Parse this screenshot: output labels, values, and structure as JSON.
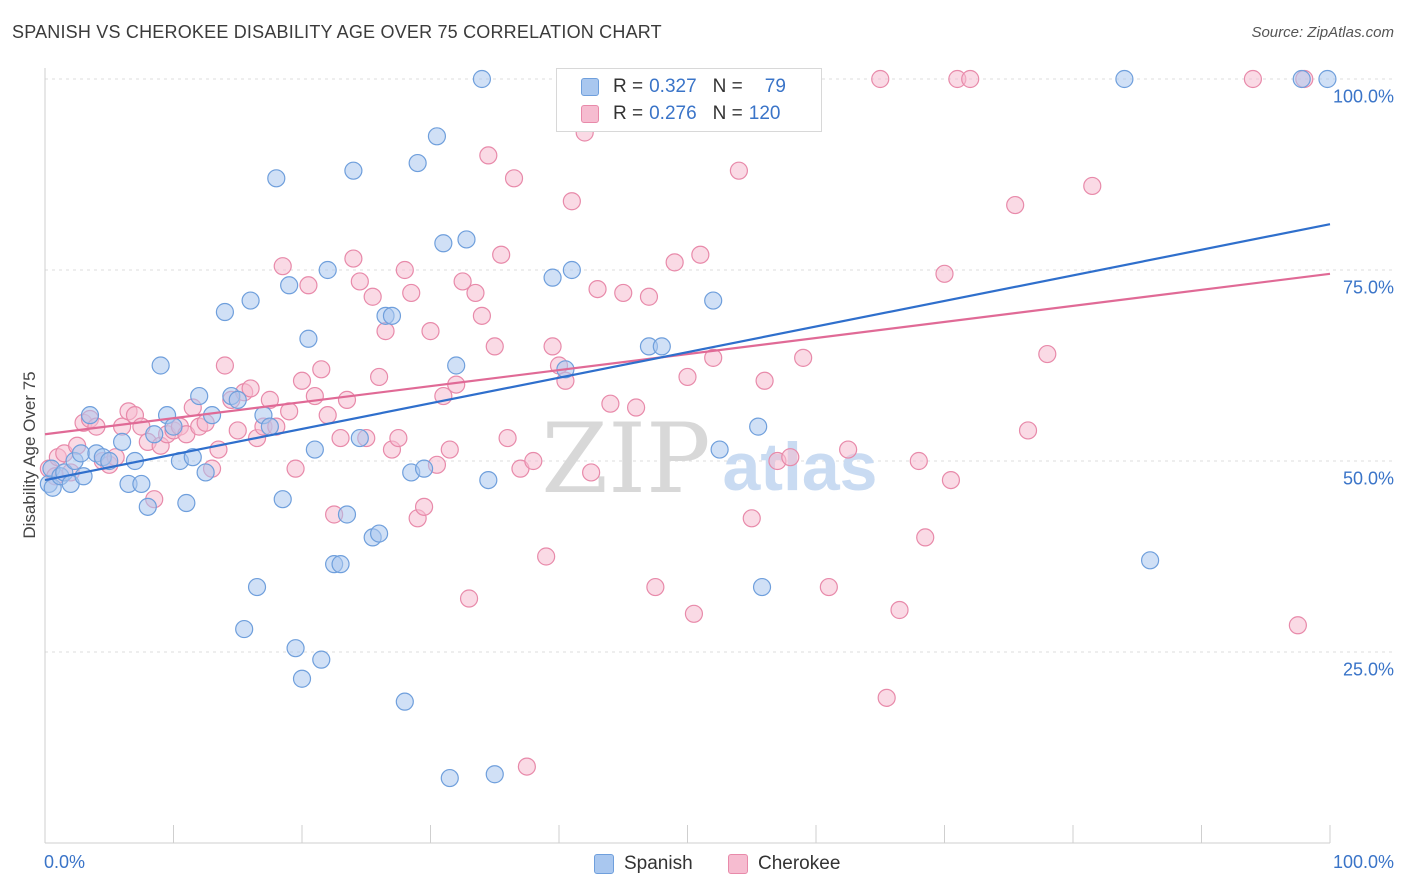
{
  "title": "SPANISH VS CHEROKEE DISABILITY AGE OVER 75 CORRELATION CHART",
  "source": "Source: ZipAtlas.com",
  "watermark": {
    "zip": "ZIP",
    "atlas": "atlas"
  },
  "colors": {
    "spanish_fill": "#a9c7ef",
    "spanish_stroke": "#6f9fdc",
    "spanish_line": "#2f6fcc",
    "cherokee_fill": "#f6bcd0",
    "cherokee_stroke": "#e88aaa",
    "cherokee_line": "#e06a96",
    "tick_text": "#3a74c8",
    "grid": "#dddddd"
  },
  "legend": {
    "rows": [
      {
        "r_label": "R =",
        "r_value": "0.327",
        "n_label": "N =",
        "n_value": "79"
      },
      {
        "r_label": "R =",
        "r_value": "0.276",
        "n_label": "N =",
        "n_value": "120"
      }
    ]
  },
  "bottom_legend": {
    "spanish": "Spanish",
    "cherokee": "Cherokee"
  },
  "chart_data": {
    "type": "scatter",
    "title": "SPANISH VS CHEROKEE DISABILITY AGE OVER 75 CORRELATION CHART",
    "xlabel": "",
    "ylabel": "Disability Age Over 75",
    "xlim": [
      0,
      100
    ],
    "ylim": [
      0,
      105
    ],
    "x_tick_labels": {
      "min": "0.0%",
      "max": "100.0%"
    },
    "y_ticks": [
      {
        "value": 25,
        "label": "25.0%"
      },
      {
        "value": 50,
        "label": "50.0%"
      },
      {
        "value": 75,
        "label": "75.0%"
      },
      {
        "value": 100,
        "label": "100.0%"
      }
    ],
    "grid": true,
    "legend_position": "top-center",
    "series": [
      {
        "name": "Spanish",
        "r": 0.327,
        "n": 79,
        "trend": {
          "x": [
            0,
            100
          ],
          "y": [
            47.5,
            81.0
          ]
        },
        "points": [
          [
            0.3,
            47.0
          ],
          [
            0.5,
            49.0
          ],
          [
            0.6,
            46.5
          ],
          [
            1.2,
            48.0
          ],
          [
            1.5,
            48.5
          ],
          [
            2.0,
            47.0
          ],
          [
            2.3,
            50.0
          ],
          [
            2.8,
            51.0
          ],
          [
            3.0,
            48.0
          ],
          [
            3.5,
            56.0
          ],
          [
            4.0,
            51.0
          ],
          [
            4.5,
            50.5
          ],
          [
            5.0,
            50.0
          ],
          [
            6.0,
            52.5
          ],
          [
            6.5,
            47.0
          ],
          [
            7.0,
            50.0
          ],
          [
            7.5,
            47.0
          ],
          [
            8.0,
            44.0
          ],
          [
            8.5,
            53.5
          ],
          [
            9.0,
            62.5
          ],
          [
            9.5,
            56.0
          ],
          [
            10.0,
            54.5
          ],
          [
            10.5,
            50.0
          ],
          [
            11.0,
            44.5
          ],
          [
            11.5,
            50.5
          ],
          [
            12.0,
            58.5
          ],
          [
            12.5,
            48.5
          ],
          [
            13.0,
            56.0
          ],
          [
            14.0,
            69.5
          ],
          [
            14.5,
            58.5
          ],
          [
            15.0,
            58.0
          ],
          [
            15.5,
            28.0
          ],
          [
            16.0,
            71.0
          ],
          [
            16.5,
            33.5
          ],
          [
            17.0,
            56.0
          ],
          [
            17.5,
            54.5
          ],
          [
            18.0,
            87.0
          ],
          [
            18.5,
            45.0
          ],
          [
            19.0,
            73.0
          ],
          [
            19.5,
            25.5
          ],
          [
            20.0,
            21.5
          ],
          [
            20.5,
            66.0
          ],
          [
            21.0,
            51.5
          ],
          [
            21.5,
            24.0
          ],
          [
            22.0,
            75.0
          ],
          [
            22.5,
            36.5
          ],
          [
            23.0,
            36.5
          ],
          [
            23.5,
            43.0
          ],
          [
            24.0,
            88.0
          ],
          [
            24.5,
            53.0
          ],
          [
            25.5,
            40.0
          ],
          [
            26.0,
            40.5
          ],
          [
            26.5,
            69.0
          ],
          [
            27.0,
            69.0
          ],
          [
            28.0,
            18.5
          ],
          [
            28.5,
            48.5
          ],
          [
            29.0,
            89.0
          ],
          [
            29.5,
            49.0
          ],
          [
            30.5,
            92.5
          ],
          [
            31.0,
            78.5
          ],
          [
            31.5,
            8.5
          ],
          [
            32.0,
            62.5
          ],
          [
            32.8,
            79.0
          ],
          [
            34.0,
            100.0
          ],
          [
            34.5,
            47.5
          ],
          [
            35.0,
            9.0
          ],
          [
            39.5,
            74.0
          ],
          [
            40.5,
            62.0
          ],
          [
            41.0,
            75.0
          ],
          [
            47.0,
            65.0
          ],
          [
            48.0,
            65.0
          ],
          [
            52.0,
            71.0
          ],
          [
            52.5,
            51.5
          ],
          [
            55.5,
            54.5
          ],
          [
            55.8,
            33.5
          ],
          [
            84.0,
            100.0
          ],
          [
            86.0,
            37.0
          ],
          [
            97.8,
            100.0
          ],
          [
            99.8,
            100.0
          ]
        ]
      },
      {
        "name": "Cherokee",
        "r": 0.276,
        "n": 120,
        "trend": {
          "x": [
            0,
            100
          ],
          "y": [
            53.5,
            74.5
          ]
        },
        "points": [
          [
            0.3,
            49.0
          ],
          [
            0.8,
            48.0
          ],
          [
            1.0,
            50.5
          ],
          [
            1.5,
            51.0
          ],
          [
            2.0,
            48.5
          ],
          [
            2.5,
            52.0
          ],
          [
            3.0,
            55.0
          ],
          [
            3.5,
            55.5
          ],
          [
            4.0,
            54.5
          ],
          [
            4.5,
            50.0
          ],
          [
            5.0,
            49.5
          ],
          [
            5.5,
            50.5
          ],
          [
            6.0,
            54.5
          ],
          [
            6.5,
            56.5
          ],
          [
            7.0,
            56.0
          ],
          [
            7.5,
            54.5
          ],
          [
            8.0,
            52.5
          ],
          [
            8.5,
            45.0
          ],
          [
            9.0,
            52.0
          ],
          [
            9.5,
            53.5
          ],
          [
            10.0,
            54.0
          ],
          [
            10.5,
            54.5
          ],
          [
            11.0,
            53.5
          ],
          [
            11.5,
            57.0
          ],
          [
            12.0,
            54.5
          ],
          [
            12.5,
            55.0
          ],
          [
            13.0,
            49.0
          ],
          [
            13.5,
            51.5
          ],
          [
            14.0,
            62.5
          ],
          [
            14.5,
            58.0
          ],
          [
            15.0,
            54.0
          ],
          [
            15.5,
            59.0
          ],
          [
            16.0,
            59.5
          ],
          [
            16.5,
            53.0
          ],
          [
            17.0,
            54.5
          ],
          [
            17.5,
            58.0
          ],
          [
            18.0,
            54.5
          ],
          [
            18.5,
            75.5
          ],
          [
            19.0,
            56.5
          ],
          [
            19.5,
            49.0
          ],
          [
            20.0,
            60.5
          ],
          [
            20.5,
            73.0
          ],
          [
            21.0,
            58.5
          ],
          [
            21.5,
            62.0
          ],
          [
            22.0,
            56.0
          ],
          [
            22.5,
            43.0
          ],
          [
            23.0,
            53.0
          ],
          [
            23.5,
            58.0
          ],
          [
            24.0,
            76.5
          ],
          [
            24.5,
            73.5
          ],
          [
            25.0,
            53.0
          ],
          [
            25.5,
            71.5
          ],
          [
            26.0,
            61.0
          ],
          [
            26.5,
            67.0
          ],
          [
            27.0,
            51.5
          ],
          [
            27.5,
            53.0
          ],
          [
            28.0,
            75.0
          ],
          [
            28.5,
            72.0
          ],
          [
            29.0,
            42.5
          ],
          [
            29.5,
            44.0
          ],
          [
            30.0,
            67.0
          ],
          [
            30.5,
            49.5
          ],
          [
            31.0,
            58.5
          ],
          [
            31.5,
            51.5
          ],
          [
            32.0,
            60.0
          ],
          [
            32.5,
            73.5
          ],
          [
            33.0,
            32.0
          ],
          [
            33.5,
            72.0
          ],
          [
            34.0,
            69.0
          ],
          [
            34.5,
            90.0
          ],
          [
            35.0,
            65.0
          ],
          [
            35.5,
            77.0
          ],
          [
            36.0,
            53.0
          ],
          [
            36.5,
            87.0
          ],
          [
            37.0,
            49.0
          ],
          [
            37.5,
            10.0
          ],
          [
            38.0,
            50.0
          ],
          [
            39.0,
            37.5
          ],
          [
            39.5,
            65.0
          ],
          [
            40.0,
            62.5
          ],
          [
            40.5,
            60.5
          ],
          [
            41.0,
            84.0
          ],
          [
            42.0,
            93.0
          ],
          [
            42.5,
            48.5
          ],
          [
            43.0,
            72.5
          ],
          [
            44.0,
            57.5
          ],
          [
            45.0,
            72.0
          ],
          [
            46.0,
            57.0
          ],
          [
            47.0,
            71.5
          ],
          [
            47.5,
            33.5
          ],
          [
            49.0,
            76.0
          ],
          [
            50.0,
            61.0
          ],
          [
            50.5,
            30.0
          ],
          [
            51.0,
            77.0
          ],
          [
            52.0,
            63.5
          ],
          [
            54.0,
            88.0
          ],
          [
            55.0,
            42.5
          ],
          [
            56.0,
            60.5
          ],
          [
            57.0,
            50.0
          ],
          [
            58.0,
            50.5
          ],
          [
            59.0,
            63.5
          ],
          [
            61.0,
            33.5
          ],
          [
            62.5,
            51.5
          ],
          [
            65.0,
            100.0
          ],
          [
            65.5,
            19.0
          ],
          [
            66.5,
            30.5
          ],
          [
            68.0,
            50.0
          ],
          [
            68.5,
            40.0
          ],
          [
            70.0,
            74.5
          ],
          [
            70.5,
            47.5
          ],
          [
            71.0,
            100.0
          ],
          [
            72.0,
            100.0
          ],
          [
            75.5,
            83.5
          ],
          [
            76.5,
            54.0
          ],
          [
            78.0,
            64.0
          ],
          [
            81.5,
            86.0
          ],
          [
            94.0,
            100.0
          ],
          [
            97.5,
            28.5
          ],
          [
            98.0,
            100.0
          ],
          [
            46.5,
            100.0
          ]
        ]
      }
    ]
  }
}
